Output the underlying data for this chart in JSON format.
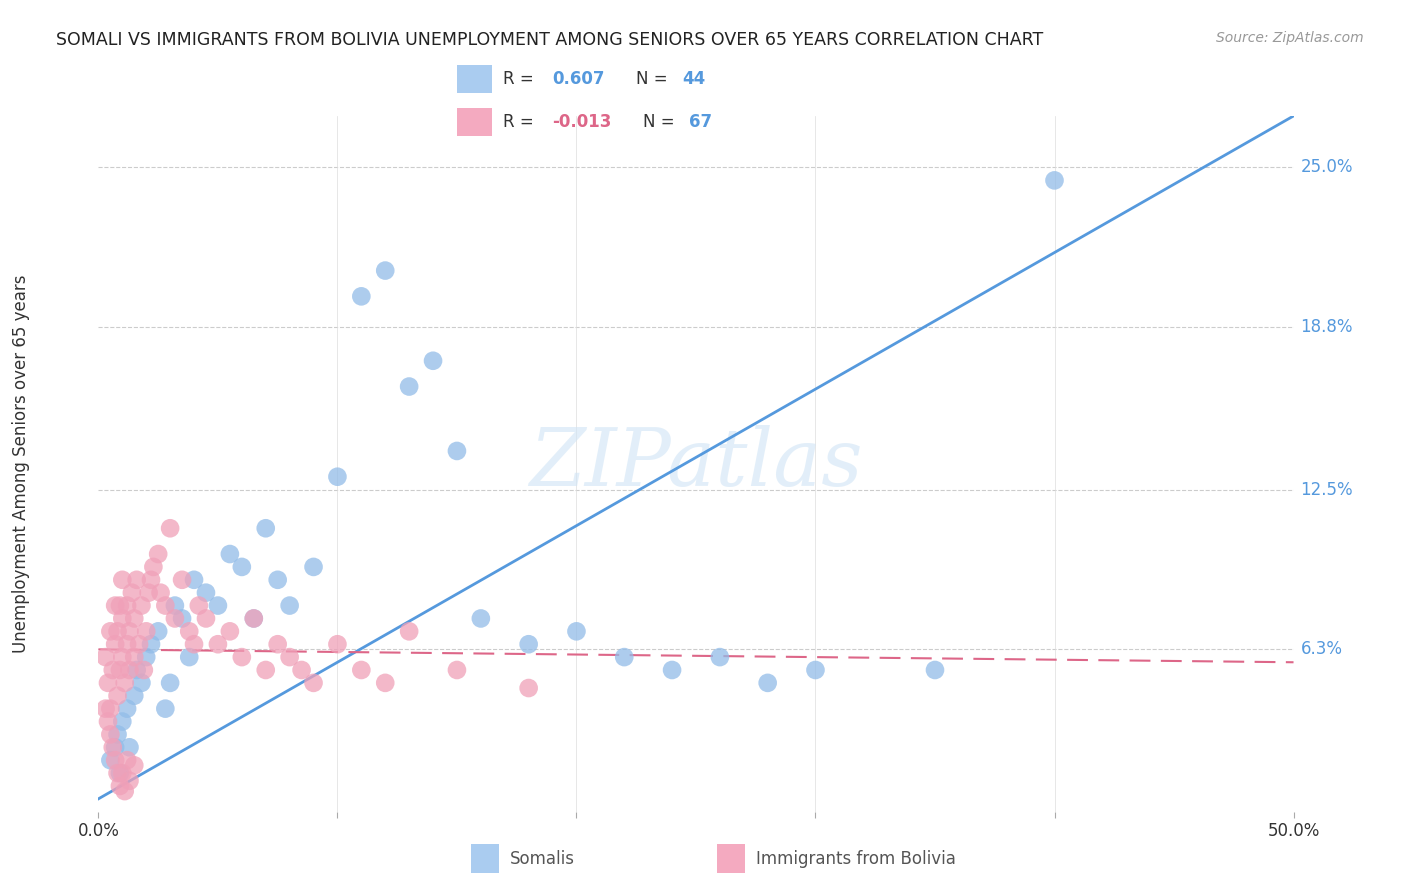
{
  "title": "SOMALI VS IMMIGRANTS FROM BOLIVIA UNEMPLOYMENT AMONG SENIORS OVER 65 YEARS CORRELATION CHART",
  "source": "Source: ZipAtlas.com",
  "ylabel": "Unemployment Among Seniors over 65 years",
  "xlim": [
    0.0,
    0.5
  ],
  "ylim": [
    0.0,
    0.27
  ],
  "ytick_right_labels": [
    "25.0%",
    "18.8%",
    "12.5%",
    "6.3%"
  ],
  "ytick_right_values": [
    0.25,
    0.188,
    0.125,
    0.063
  ],
  "somali_color": "#92bce8",
  "bolivia_color": "#f0a0b8",
  "somali_line_color": "#5599dd",
  "bolivia_line_color": "#dd6688",
  "watermark_text": "ZIPatlas",
  "background_color": "#ffffff",
  "somali_r": 0.607,
  "somali_n": 44,
  "bolivia_r": -0.013,
  "bolivia_n": 67,
  "somali_legend_color": "#aaccf0",
  "bolivia_legend_color": "#f4aac0",
  "legend_r1_val": "0.607",
  "legend_r1_n": "44",
  "legend_r2_val": "-0.013",
  "legend_r2_n": "67",
  "somali_x": [
    0.005,
    0.007,
    0.008,
    0.009,
    0.01,
    0.012,
    0.013,
    0.015,
    0.016,
    0.018,
    0.02,
    0.022,
    0.025,
    0.028,
    0.03,
    0.032,
    0.035,
    0.038,
    0.04,
    0.045,
    0.05,
    0.055,
    0.06,
    0.065,
    0.07,
    0.075,
    0.08,
    0.09,
    0.1,
    0.11,
    0.12,
    0.13,
    0.14,
    0.15,
    0.16,
    0.18,
    0.2,
    0.22,
    0.24,
    0.26,
    0.28,
    0.3,
    0.35,
    0.4
  ],
  "somali_y": [
    0.02,
    0.025,
    0.03,
    0.015,
    0.035,
    0.04,
    0.025,
    0.045,
    0.055,
    0.05,
    0.06,
    0.065,
    0.07,
    0.04,
    0.05,
    0.08,
    0.075,
    0.06,
    0.09,
    0.085,
    0.08,
    0.1,
    0.095,
    0.075,
    0.11,
    0.09,
    0.08,
    0.095,
    0.13,
    0.2,
    0.21,
    0.165,
    0.175,
    0.14,
    0.075,
    0.065,
    0.07,
    0.06,
    0.055,
    0.06,
    0.05,
    0.055,
    0.055,
    0.245
  ],
  "bolivia_x": [
    0.003,
    0.004,
    0.005,
    0.005,
    0.006,
    0.007,
    0.007,
    0.008,
    0.008,
    0.009,
    0.009,
    0.01,
    0.01,
    0.01,
    0.011,
    0.012,
    0.012,
    0.013,
    0.013,
    0.014,
    0.015,
    0.015,
    0.016,
    0.017,
    0.018,
    0.019,
    0.02,
    0.021,
    0.022,
    0.023,
    0.025,
    0.026,
    0.028,
    0.03,
    0.032,
    0.035,
    0.038,
    0.04,
    0.042,
    0.045,
    0.05,
    0.055,
    0.06,
    0.065,
    0.07,
    0.075,
    0.08,
    0.085,
    0.09,
    0.1,
    0.11,
    0.12,
    0.13,
    0.15,
    0.18,
    0.003,
    0.004,
    0.005,
    0.006,
    0.007,
    0.008,
    0.009,
    0.01,
    0.011,
    0.012,
    0.013,
    0.015
  ],
  "bolivia_y": [
    0.06,
    0.05,
    0.04,
    0.07,
    0.055,
    0.065,
    0.08,
    0.045,
    0.07,
    0.055,
    0.08,
    0.06,
    0.075,
    0.09,
    0.05,
    0.065,
    0.08,
    0.055,
    0.07,
    0.085,
    0.06,
    0.075,
    0.09,
    0.065,
    0.08,
    0.055,
    0.07,
    0.085,
    0.09,
    0.095,
    0.1,
    0.085,
    0.08,
    0.11,
    0.075,
    0.09,
    0.07,
    0.065,
    0.08,
    0.075,
    0.065,
    0.07,
    0.06,
    0.075,
    0.055,
    0.065,
    0.06,
    0.055,
    0.05,
    0.065,
    0.055,
    0.05,
    0.07,
    0.055,
    0.048,
    0.04,
    0.035,
    0.03,
    0.025,
    0.02,
    0.015,
    0.01,
    0.015,
    0.008,
    0.02,
    0.012,
    0.018
  ],
  "somali_line_x": [
    0.0,
    0.5
  ],
  "somali_line_y": [
    0.005,
    0.27
  ],
  "bolivia_line_x": [
    0.0,
    0.5
  ],
  "bolivia_line_y": [
    0.063,
    0.058
  ]
}
